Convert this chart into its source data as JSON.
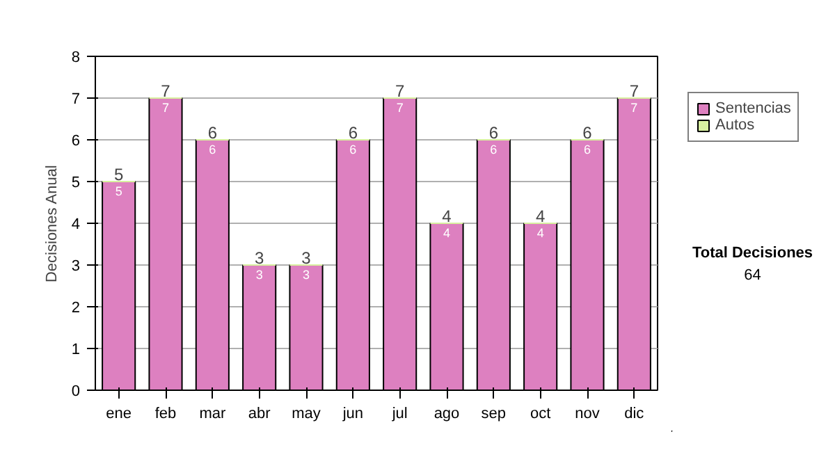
{
  "chart_data": {
    "type": "bar",
    "stacked": true,
    "ylabel": "Decisiones Anual",
    "categories": [
      "ene",
      "feb",
      "mar",
      "abr",
      "may",
      "jun",
      "jul",
      "ago",
      "sep",
      "oct",
      "nov",
      "dic"
    ],
    "series": [
      {
        "name": "Sentencias",
        "color": "#dd80c0",
        "values": [
          5,
          7,
          6,
          3,
          3,
          6,
          7,
          4,
          6,
          4,
          6,
          7
        ],
        "value_labels": [
          "5",
          "7",
          "6",
          "3",
          "3",
          "6",
          "7",
          "4",
          "6",
          "4",
          "6",
          "7"
        ]
      },
      {
        "name": "Autos",
        "color": "#d8f0a0",
        "values": [
          0,
          0,
          0,
          0,
          0,
          0,
          0,
          0,
          0,
          0,
          0,
          0
        ]
      }
    ],
    "totals": [
      "5",
      "7",
      "6",
      "3",
      "3",
      "6",
      "7",
      "4",
      "6",
      "4",
      "6",
      "7"
    ],
    "ylim": [
      0,
      8
    ],
    "yticks": [
      0,
      1,
      2,
      3,
      4,
      5,
      6,
      7,
      8
    ],
    "grid": "y",
    "legend": "right",
    "annotations": [
      "Total Decisiones",
      "64"
    ]
  }
}
